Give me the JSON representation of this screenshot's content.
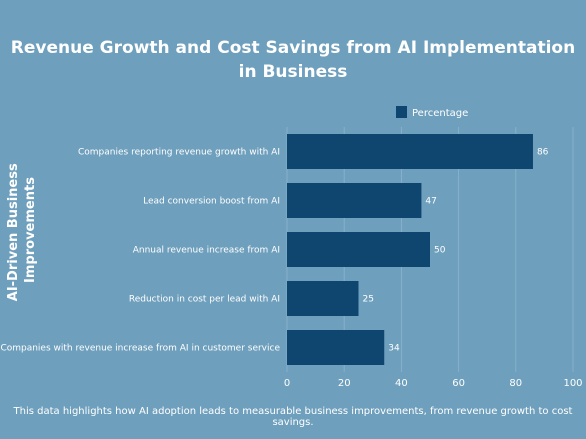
{
  "chart_data": {
    "type": "bar",
    "orientation": "horizontal",
    "title_lines": [
      "Revenue Growth and Cost Savings from AI Implementation",
      "in Business"
    ],
    "ylabel_lines": [
      "AI-Driven Business",
      "Improvements"
    ],
    "xlabel": "",
    "categories": [
      "Companies reporting revenue growth with AI",
      "Lead conversion boost from AI",
      "Annual revenue increase from AI",
      "Reduction in cost per lead with AI",
      "Companies with revenue increase from AI in customer service"
    ],
    "series": [
      {
        "name": "Percentage",
        "values": [
          86,
          47,
          50,
          25,
          34
        ]
      }
    ],
    "xlim": [
      0,
      100
    ],
    "xticks": [
      0,
      20,
      40,
      60,
      80,
      100
    ],
    "grid": true,
    "legend_position": "top",
    "caption": "This data highlights how AI adoption leads to measurable business improvements, from revenue growth to cost savings."
  },
  "colors": {
    "background": "#6e9fbd",
    "bar": "#0e4670",
    "grid": "#86b1cb",
    "text": "#ffffff"
  }
}
